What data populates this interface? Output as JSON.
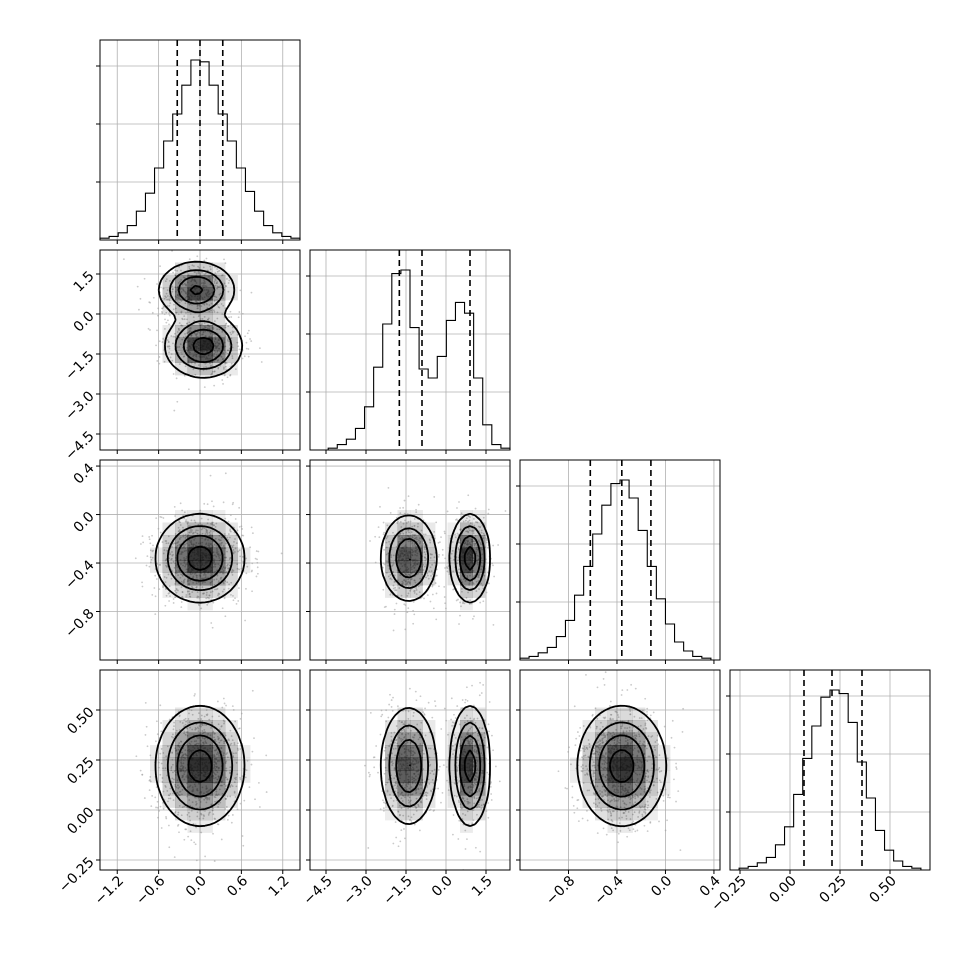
{
  "chart_data": {
    "type": "corner",
    "colors": {
      "line": "#000000",
      "points": "#9e9e9e",
      "density": "#000000",
      "grid": "#b0b0b0"
    },
    "grid": true,
    "parameters": [
      {
        "index": 0,
        "range": [
          -1.45,
          1.45
        ],
        "ticks": [
          -1.2,
          -0.6,
          0.0,
          0.6,
          1.2
        ],
        "tick_labels": [
          "−1.2",
          "−0.6",
          "0.0",
          "0.6",
          "1.2"
        ],
        "quantiles": [
          -0.33,
          0.0,
          0.33
        ],
        "hist": [
          1,
          2,
          4,
          8,
          16,
          26,
          40,
          55,
          70,
          86,
          100,
          99,
          86,
          70,
          55,
          40,
          27,
          16,
          8,
          4,
          2,
          1
        ]
      },
      {
        "index": 1,
        "range": [
          -5.1,
          2.4
        ],
        "ticks": [
          -4.5,
          -3.0,
          -1.5,
          0.0,
          1.5
        ],
        "tick_labels": [
          "−4.5",
          "−3.0",
          "−1.5",
          "0.0",
          "1.5"
        ],
        "quantiles": [
          -1.75,
          -0.9,
          0.9
        ],
        "hist": [
          0,
          0,
          1,
          3,
          6,
          12,
          24,
          46,
          70,
          98,
          100,
          68,
          45,
          40,
          52,
          72,
          82,
          76,
          40,
          14,
          3,
          1
        ]
      },
      {
        "index": 2,
        "range": [
          -1.2,
          0.45
        ],
        "ticks": [
          -0.8,
          -0.4,
          0.0,
          0.4
        ],
        "tick_labels": [
          "−0.8",
          "−0.4",
          "0.0",
          "0.4"
        ],
        "quantiles": [
          -0.62,
          -0.36,
          -0.12
        ],
        "hist": [
          1,
          2,
          4,
          7,
          13,
          22,
          36,
          52,
          70,
          86,
          98,
          100,
          90,
          72,
          52,
          34,
          20,
          10,
          5,
          2,
          1,
          0
        ]
      },
      {
        "index": 3,
        "range": [
          -0.3,
          0.7
        ],
        "ticks": [
          -0.25,
          0.0,
          0.25,
          0.5
        ],
        "tick_labels": [
          "−0.25",
          "0.00",
          "0.25",
          "0.50"
        ],
        "quantiles": [
          0.07,
          0.21,
          0.36
        ],
        "hist": [
          0,
          1,
          2,
          4,
          7,
          14,
          24,
          42,
          62,
          80,
          96,
          100,
          98,
          82,
          60,
          40,
          22,
          11,
          5,
          2,
          1,
          0
        ]
      }
    ],
    "pairs": [
      {
        "row": 1,
        "col": 0,
        "modes": [
          {
            "mx": -0.05,
            "my": 0.9,
            "sx": 0.26,
            "sy": 0.5,
            "w": 0.45
          },
          {
            "mx": 0.05,
            "my": -1.2,
            "sx": 0.26,
            "sy": 0.55,
            "w": 0.55
          }
        ]
      },
      {
        "row": 2,
        "col": 0,
        "modes": [
          {
            "mx": 0.0,
            "my": -0.36,
            "sx": 0.3,
            "sy": 0.17,
            "w": 1.0
          }
        ]
      },
      {
        "row": 2,
        "col": 1,
        "modes": [
          {
            "mx": -1.4,
            "my": -0.36,
            "sx": 0.5,
            "sy": 0.17,
            "w": 0.55
          },
          {
            "mx": 0.9,
            "my": -0.36,
            "sx": 0.35,
            "sy": 0.17,
            "w": 0.45
          }
        ]
      },
      {
        "row": 3,
        "col": 0,
        "modes": [
          {
            "mx": 0.0,
            "my": 0.22,
            "sx": 0.3,
            "sy": 0.14,
            "w": 1.0
          }
        ]
      },
      {
        "row": 3,
        "col": 1,
        "modes": [
          {
            "mx": -1.4,
            "my": 0.22,
            "sx": 0.5,
            "sy": 0.14,
            "w": 0.55
          },
          {
            "mx": 0.9,
            "my": 0.22,
            "sx": 0.35,
            "sy": 0.14,
            "w": 0.45
          }
        ]
      },
      {
        "row": 3,
        "col": 2,
        "modes": [
          {
            "mx": -0.36,
            "my": 0.22,
            "sx": 0.17,
            "sy": 0.14,
            "w": 1.0
          }
        ]
      }
    ]
  }
}
